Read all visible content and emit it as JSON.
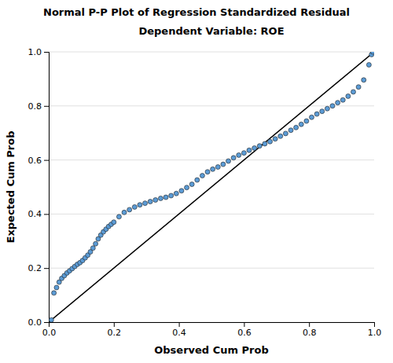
{
  "chart_data": {
    "type": "scatter",
    "title": "Normal P-P Plot of Regression Standardized Residual",
    "subtitle": "Dependent Variable: ROE",
    "x_label": "Observed Cum Prob",
    "y_label": "Expected Cum Prob",
    "xlim": [
      0.0,
      1.0
    ],
    "ylim": [
      0.0,
      1.0
    ],
    "xticks": [
      {
        "value": 0.0,
        "label": "0.0"
      },
      0.2,
      0.4,
      0.6,
      0.8,
      {
        "value": 1.0,
        "label": "1.0"
      }
    ],
    "yticks": [
      {
        "value": 0.0,
        "label": "0.0"
      },
      0.2,
      0.4,
      0.6,
      0.8,
      {
        "value": 1.0,
        "label": "1.0"
      }
    ],
    "grid": "y",
    "series": [
      {
        "type": "line",
        "color": "#000000",
        "x": [
          0,
          1
        ],
        "values": [
          0,
          1
        ]
      },
      {
        "type": "scatter",
        "color": "#5B9BD5",
        "marker": "circle",
        "x": [
          0.008,
          0.016,
          0.024,
          0.032,
          0.04,
          0.048,
          0.056,
          0.064,
          0.072,
          0.08,
          0.088,
          0.096,
          0.104,
          0.112,
          0.12,
          0.128,
          0.136,
          0.144,
          0.152,
          0.16,
          0.168,
          0.176,
          0.184,
          0.192,
          0.2,
          0.216,
          0.232,
          0.248,
          0.264,
          0.28,
          0.296,
          0.312,
          0.328,
          0.344,
          0.36,
          0.376,
          0.392,
          0.408,
          0.424,
          0.44,
          0.456,
          0.472,
          0.488,
          0.504,
          0.52,
          0.536,
          0.552,
          0.568,
          0.584,
          0.6,
          0.616,
          0.632,
          0.648,
          0.664,
          0.68,
          0.696,
          0.712,
          0.728,
          0.744,
          0.76,
          0.776,
          0.792,
          0.808,
          0.824,
          0.84,
          0.856,
          0.872,
          0.888,
          0.904,
          0.92,
          0.936,
          0.952,
          0.968,
          0.984,
          0.992,
          0.996
        ],
        "values": [
          0.008,
          0.108,
          0.128,
          0.148,
          0.162,
          0.172,
          0.182,
          0.19,
          0.198,
          0.206,
          0.214,
          0.22,
          0.228,
          0.238,
          0.248,
          0.26,
          0.274,
          0.29,
          0.308,
          0.322,
          0.334,
          0.344,
          0.354,
          0.362,
          0.37,
          0.39,
          0.406,
          0.416,
          0.426,
          0.434,
          0.44,
          0.446,
          0.452,
          0.458,
          0.462,
          0.468,
          0.476,
          0.486,
          0.498,
          0.51,
          0.526,
          0.542,
          0.556,
          0.566,
          0.574,
          0.584,
          0.596,
          0.608,
          0.618,
          0.626,
          0.636,
          0.644,
          0.652,
          0.66,
          0.668,
          0.678,
          0.688,
          0.698,
          0.71,
          0.72,
          0.732,
          0.744,
          0.758,
          0.77,
          0.78,
          0.79,
          0.8,
          0.812,
          0.822,
          0.836,
          0.852,
          0.87,
          0.896,
          0.952,
          0.99,
          1.0
        ]
      }
    ]
  }
}
